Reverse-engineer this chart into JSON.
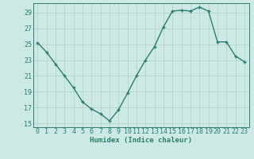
{
  "x": [
    0,
    1,
    2,
    3,
    4,
    5,
    6,
    7,
    8,
    9,
    10,
    11,
    12,
    13,
    14,
    15,
    16,
    17,
    18,
    19,
    20,
    21,
    22,
    23
  ],
  "y": [
    25.2,
    24.0,
    22.5,
    21.0,
    19.5,
    17.7,
    16.8,
    16.2,
    15.3,
    16.7,
    18.8,
    21.0,
    23.0,
    24.7,
    27.2,
    29.2,
    29.3,
    29.2,
    29.7,
    29.2,
    25.3,
    25.3,
    23.5,
    22.8
  ],
  "line_color": "#2d7d6e",
  "marker": "+",
  "markersize": 3.5,
  "linewidth": 1.0,
  "bg_color": "#cce9e5",
  "grid_color": "#b0ceca",
  "xlabel": "Humidex (Indice chaleur)",
  "xlim": [
    -0.5,
    23.5
  ],
  "ylim": [
    14.5,
    30.2
  ],
  "yticks": [
    15,
    17,
    19,
    21,
    23,
    25,
    27,
    29
  ],
  "xticks": [
    0,
    1,
    2,
    3,
    4,
    5,
    6,
    7,
    8,
    9,
    10,
    11,
    12,
    13,
    14,
    15,
    16,
    17,
    18,
    19,
    20,
    21,
    22,
    23
  ],
  "label_fontsize": 6.5,
  "tick_fontsize": 6.0
}
